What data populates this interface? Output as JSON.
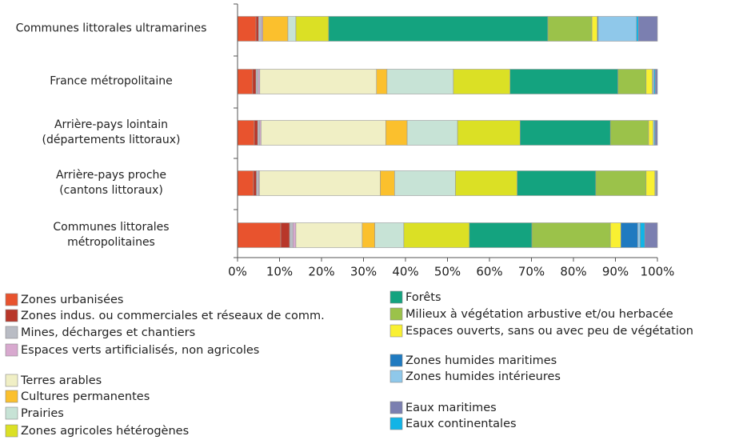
{
  "chart_data": {
    "type": "stacked-bar-horizontal",
    "categories": [
      "Communes littorales ultramarines",
      "France métropolitaine",
      "Arrière-pays lointain\n(départements littoraux)",
      "Arrière-pays proche\n(cantons littoraux)",
      "Communes littorales\nmétropolitaines"
    ],
    "xlim": [
      0,
      100
    ],
    "xticks": [
      {
        "value": 0,
        "label": "0%"
      },
      {
        "value": 10,
        "label": "10%"
      },
      {
        "value": 20,
        "label": "20%"
      },
      {
        "value": 30,
        "label": "30%"
      },
      {
        "value": 40,
        "label": "40%"
      },
      {
        "value": 50,
        "label": "50%"
      },
      {
        "value": 60,
        "label": "60%"
      },
      {
        "value": 70,
        "label": "70%"
      },
      {
        "value": 80,
        "label": "80%"
      },
      {
        "value": 90,
        "label": "90%"
      },
      {
        "value": 100,
        "label": "100%"
      }
    ],
    "series": [
      {
        "name": "Zones urbanisées",
        "color": "#e8532e",
        "values": [
          4.4,
          3.6,
          4,
          3.8,
          10.3
        ]
      },
      {
        "name": "Zones indus. ou commerciales et réseaux de comm.",
        "color": "#b8372a",
        "values": [
          0.6,
          0.8,
          0.8,
          0.7,
          2.1
        ]
      },
      {
        "name": "Mines, décharges et chantiers",
        "color": "#b9bcc4",
        "values": [
          0.7,
          0.5,
          0.5,
          0.5,
          0.8
        ]
      },
      {
        "name": "Espaces verts artificialisés, non agricoles",
        "color": "#d8a9cf",
        "values": [
          0.3,
          0.4,
          0.3,
          0.2,
          0.7
        ]
      },
      {
        "name": "Terres arables",
        "color": "#f0efc5",
        "values": [
          0,
          27.8,
          29.7,
          28.8,
          15.8
        ]
      },
      {
        "name": "Cultures permanentes",
        "color": "#fbc02d",
        "values": [
          6,
          2.5,
          5.1,
          3.4,
          3
        ]
      },
      {
        "name": "Prairies",
        "color": "#c7e3d6",
        "values": [
          1.9,
          15.8,
          12,
          14.5,
          6.9
        ]
      },
      {
        "name": "Zones agricoles hétérogènes",
        "color": "#dbe025",
        "values": [
          7.8,
          13.5,
          14.9,
          14.7,
          15.6
        ]
      },
      {
        "name": "Forêts",
        "color": "#14a37f",
        "values": [
          52.2,
          25.7,
          21.5,
          18.7,
          14.9
        ]
      },
      {
        "name": "Milieux à végétation arbustive et/ou herbacée",
        "color": "#9bc24a",
        "values": [
          10.5,
          6.7,
          9.1,
          12,
          18.7
        ]
      },
      {
        "name": "Espaces ouverts, sans ou avec peu de végétation",
        "color": "#f9f032",
        "values": [
          1.3,
          1.5,
          1.1,
          2.1,
          2.5
        ]
      },
      {
        "name": "Zones humides maritimes",
        "color": "#1f7ac0",
        "values": [
          0.2,
          0.1,
          0,
          0.1,
          4
        ]
      },
      {
        "name": "Zones humides intérieures",
        "color": "#8fc8ea",
        "values": [
          9.1,
          0.3,
          0.3,
          0.2,
          0.6
        ]
      },
      {
        "name": "Eaux continentales",
        "color": "#12b4e6",
        "values": [
          0.5,
          0.3,
          0.2,
          0.1,
          1.1
        ]
      },
      {
        "name": "Eaux maritimes",
        "color": "#7b7fb0",
        "values": [
          4.5,
          0.5,
          0.5,
          0.2,
          3
        ]
      }
    ]
  }
}
